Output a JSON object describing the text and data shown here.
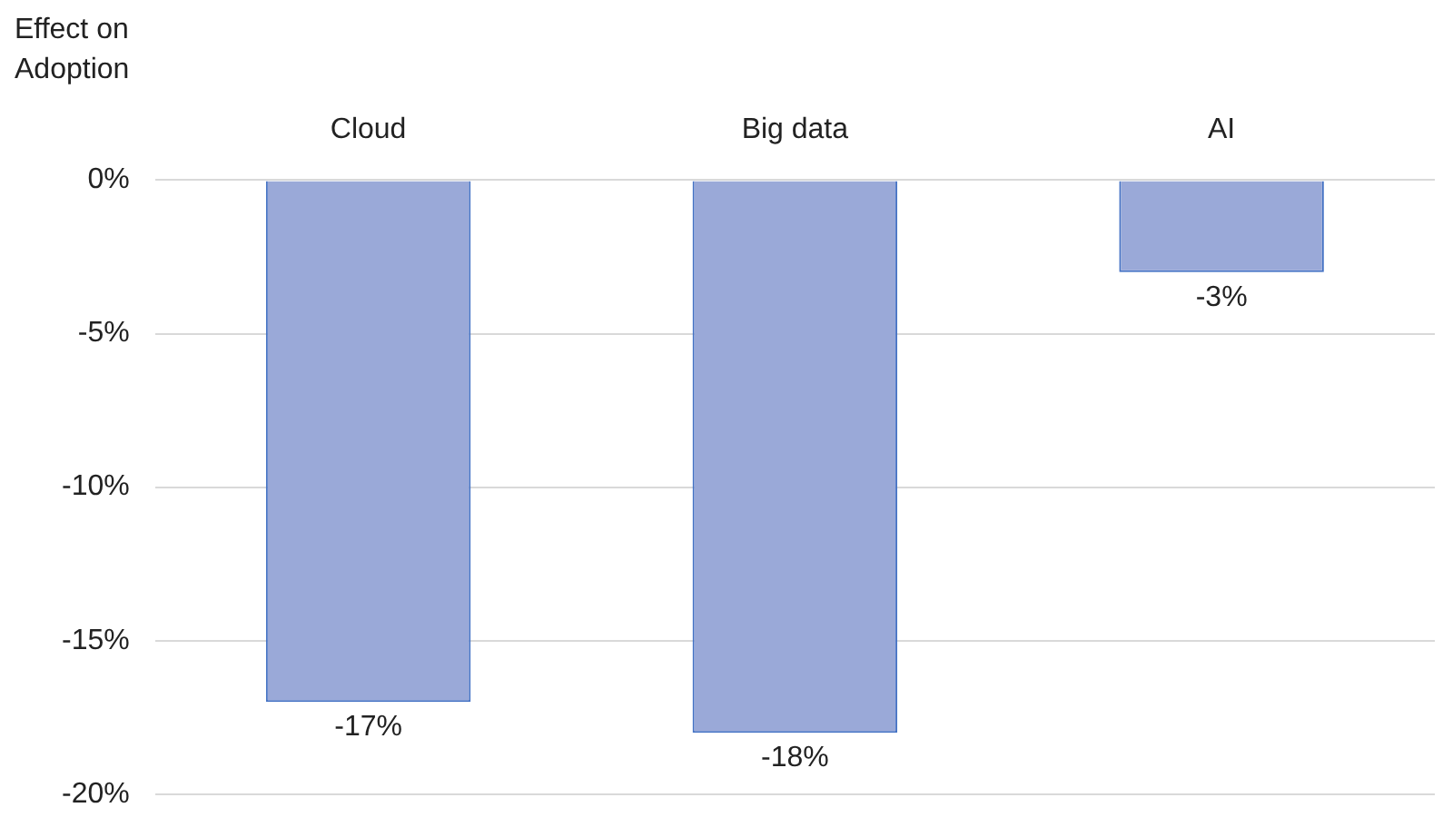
{
  "chart_data": {
    "type": "bar",
    "ylabel": "Effect on Adoption",
    "categories": [
      "Cloud",
      "Big data",
      "AI"
    ],
    "values": [
      -17,
      -18,
      -3
    ],
    "value_labels": [
      "-17%",
      "-18%",
      "-3%"
    ],
    "color": "#9aa9d8",
    "ylim": [
      -20,
      0
    ],
    "yticks": [
      {
        "value": 0,
        "label": "0%"
      },
      {
        "value": -5,
        "label": "-5%"
      },
      {
        "value": -10,
        "label": "-10%"
      },
      {
        "value": -15,
        "label": "-15%"
      },
      {
        "value": -20,
        "label": "-20%"
      }
    ],
    "grid": "y",
    "legend": false
  }
}
